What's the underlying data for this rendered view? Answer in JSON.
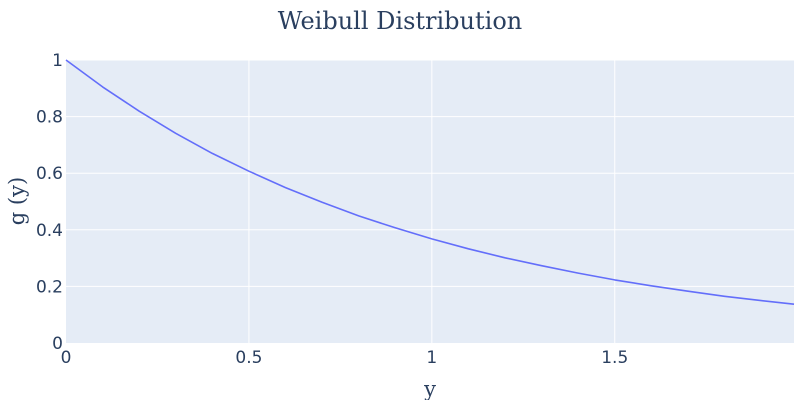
{
  "chart_data": {
    "type": "line",
    "title": "Weibull Distribution",
    "xlabel": "y",
    "ylabel": "g (y)",
    "xlim": [
      0,
      1.99
    ],
    "ylim": [
      0,
      1
    ],
    "x_ticks": [
      0,
      0.5,
      1,
      1.5
    ],
    "x_tick_labels": [
      "0",
      "0.5",
      "1",
      "1.5"
    ],
    "y_ticks": [
      0,
      0.2,
      0.4,
      0.6,
      0.8,
      1
    ],
    "y_tick_labels": [
      "0",
      "0.2",
      "0.4",
      "0.6",
      "0.8",
      "1"
    ],
    "grid": true,
    "legend": "none",
    "colors": {
      "line": "#636efa",
      "plot_bg": "#e5ecf6",
      "grid": "#ffffff",
      "text": "#2a3f5f"
    },
    "series": [
      {
        "x": [
          0,
          0.1,
          0.2,
          0.3,
          0.4,
          0.5,
          0.6,
          0.7,
          0.8,
          0.9,
          1.0,
          1.1,
          1.2,
          1.3,
          1.4,
          1.5,
          1.6,
          1.7,
          1.8,
          1.9,
          1.99
        ],
        "y": [
          1.0,
          0.905,
          0.819,
          0.741,
          0.67,
          0.607,
          0.549,
          0.497,
          0.449,
          0.407,
          0.368,
          0.333,
          0.301,
          0.273,
          0.247,
          0.223,
          0.202,
          0.183,
          0.165,
          0.15,
          0.137
        ]
      }
    ]
  }
}
